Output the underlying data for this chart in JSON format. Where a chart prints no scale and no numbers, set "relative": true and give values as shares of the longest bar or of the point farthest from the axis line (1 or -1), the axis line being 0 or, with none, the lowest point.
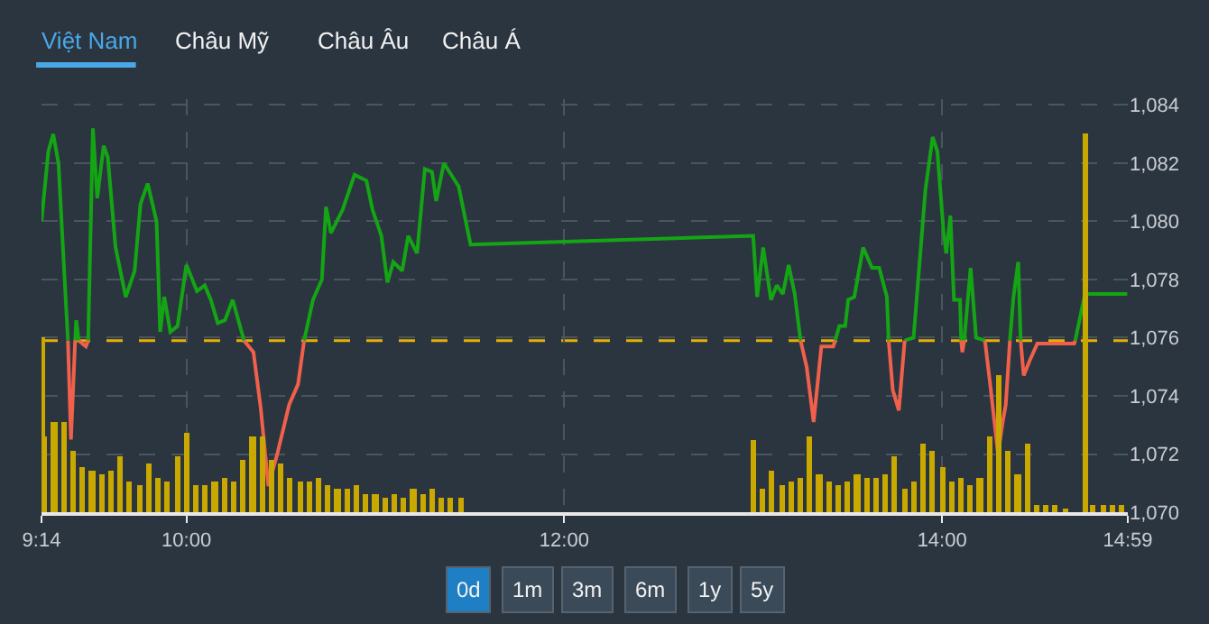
{
  "chart_data": [
    {
      "type": "line",
      "annotations": [
        "Việt Nam",
        "Châu Mỹ",
        "Châu Âu",
        "Châu Á",
        "0d",
        "1m",
        "3m",
        "6m",
        "1y",
        "5y"
      ],
      "x": [
        9.233,
        9.269,
        9.295,
        9.323,
        9.348,
        9.373,
        9.389,
        9.411,
        9.417,
        9.43,
        9.468,
        9.48,
        9.505,
        9.528,
        9.562,
        9.584,
        9.625,
        9.679,
        9.726,
        9.757,
        9.795,
        9.842,
        9.861,
        9.883,
        9.915,
        9.953,
        10.0,
        10.056,
        10.097,
        10.129,
        10.166,
        10.204,
        10.245,
        10.305,
        10.355,
        10.393,
        10.434,
        10.481,
        10.544,
        10.591,
        10.623,
        10.67,
        10.717,
        10.739,
        10.765,
        10.827,
        10.89,
        10.953,
        10.985,
        11.032,
        11.064,
        11.095,
        11.142,
        11.174,
        11.221,
        11.262,
        11.3,
        11.322,
        11.363,
        11.441,
        11.504,
        13.0,
        13.021,
        13.053,
        13.094,
        13.125,
        13.157,
        13.188,
        13.22,
        13.251,
        13.283,
        13.32,
        13.361,
        13.424,
        13.434,
        13.456,
        13.487,
        13.503,
        13.535,
        13.582,
        13.629,
        13.667,
        13.708,
        13.717,
        13.739,
        13.771,
        13.802,
        13.849,
        13.912,
        13.95,
        13.975,
        14.007,
        14.022,
        14.044,
        14.063,
        14.095,
        14.101,
        14.107,
        14.117,
        14.151,
        14.18,
        14.227,
        14.258,
        14.296,
        14.321,
        14.337,
        14.359,
        14.378,
        14.403,
        14.416,
        14.432,
        14.463,
        14.504,
        14.699,
        14.705,
        14.756,
        14.98
      ],
      "series": [
        {
          "color": "#14a514",
          "values": [
            1080.0,
            1082.4,
            1083.0,
            1082.0,
            1078.9,
            1075.9,
            null,
            1075.9,
            1076.6,
            1075.9,
            null,
            1075.9,
            1083.2,
            1080.8,
            1082.6,
            1082.2,
            1079.1,
            1077.4,
            1078.3,
            1080.6,
            1081.3,
            1080.0,
            1076.2,
            1077.4,
            1076.2,
            1076.4,
            1078.5,
            1077.6,
            1077.8,
            1077.3,
            1076.5,
            1076.6,
            1077.3,
            1075.9,
            null,
            null,
            null,
            null,
            null,
            null,
            1075.9,
            1077.3,
            1078.0,
            1080.5,
            1079.6,
            1080.4,
            1081.6,
            1081.4,
            1080.4,
            1079.5,
            1077.9,
            1078.6,
            1078.3,
            1079.5,
            1078.9,
            1081.8,
            1081.7,
            1080.7,
            1082.0,
            1081.2,
            1079.2,
            1079.5,
            1077.4,
            1079.1,
            1077.3,
            1077.8,
            1077.5,
            1078.5,
            1077.5,
            1075.9,
            null,
            null,
            null,
            null,
            1075.9,
            1076.4,
            1076.4,
            1077.3,
            1077.4,
            1079.1,
            1078.4,
            1078.4,
            1077.4,
            1075.9,
            null,
            null,
            1075.9,
            1076.0,
            1081.1,
            1082.9,
            1082.4,
            1079.7,
            1078.9,
            1080.2,
            1077.3,
            1077.3,
            1075.9,
            null,
            1075.9,
            1078.4,
            1076.0,
            1075.9,
            null,
            null,
            null,
            null,
            1075.9,
            1077.4,
            1078.6,
            1075.9,
            null,
            null,
            null,
            null,
            1075.9,
            1077.5,
            1077.5
          ]
        },
        {
          "color": "#f0604a",
          "values": [
            null,
            null,
            null,
            null,
            null,
            1075.9,
            1072.5,
            1075.9,
            null,
            1075.9,
            1075.7,
            1075.9,
            null,
            null,
            null,
            null,
            null,
            null,
            null,
            null,
            null,
            null,
            null,
            null,
            null,
            null,
            null,
            null,
            null,
            null,
            null,
            null,
            null,
            1075.9,
            1075.5,
            1073.6,
            1070.9,
            1072.0,
            1073.7,
            1074.4,
            1075.9,
            null,
            null,
            null,
            null,
            null,
            null,
            null,
            null,
            null,
            null,
            null,
            null,
            null,
            null,
            null,
            null,
            null,
            null,
            null,
            null,
            null,
            null,
            null,
            null,
            null,
            null,
            null,
            null,
            1075.9,
            1075.0,
            1073.1,
            1075.7,
            1075.7,
            1075.9,
            null,
            null,
            null,
            null,
            null,
            null,
            null,
            null,
            1075.9,
            1074.2,
            1073.5,
            1075.9,
            null,
            null,
            null,
            null,
            null,
            null,
            null,
            null,
            null,
            1075.9,
            1075.5,
            1075.9,
            null,
            null,
            1075.9,
            1074.2,
            1072.0,
            1073.1,
            1073.7,
            1075.9,
            null,
            null,
            1075.9,
            1074.7,
            1075.2,
            1075.8,
            1075.8,
            1075.9,
            null,
            null
          ]
        }
      ],
      "xlim": [
        9.233,
        14.983
      ],
      "xticks": [
        {
          "value": 9.233,
          "label": "9:14"
        },
        {
          "value": 10,
          "label": "10:00"
        },
        {
          "value": 12,
          "label": "12:00"
        },
        {
          "value": 14,
          "label": "14:00"
        },
        {
          "value": 14.983,
          "label": "14:59"
        }
      ],
      "ylim": [
        1070,
        1084.2
      ],
      "yticks": [
        {
          "value": 1070,
          "label": "1,070"
        },
        {
          "value": 1072,
          "label": "1,072"
        },
        {
          "value": 1074,
          "label": "1,074"
        },
        {
          "value": 1076,
          "label": "1,076"
        },
        {
          "value": 1078,
          "label": "1,078"
        },
        {
          "value": 1080,
          "label": "1,080"
        },
        {
          "value": 1082,
          "label": "1,082"
        },
        {
          "value": 1084,
          "label": "1,084"
        }
      ],
      "ref_lines": [
        {
          "axis": "y",
          "value": 1075.9,
          "color": "#e6b000",
          "line_style": "dashed"
        }
      ],
      "grid": true,
      "marker": "none",
      "line_style": "solid"
    },
    {
      "type": "bar",
      "relative": true,
      "color": "#c9a800",
      "tick_labels": false,
      "xlim": [
        9.233,
        14.983
      ],
      "x": [
        9.233,
        9.25,
        9.3,
        9.35,
        9.4,
        9.45,
        9.5,
        9.55,
        9.6,
        9.65,
        9.7,
        9.75,
        9.8,
        9.85,
        9.9,
        9.95,
        10.0,
        10.05,
        10.1,
        10.15,
        10.2,
        10.25,
        10.3,
        10.35,
        10.4,
        10.45,
        10.5,
        10.55,
        10.6,
        10.65,
        10.7,
        10.75,
        10.8,
        10.85,
        10.9,
        10.95,
        11.0,
        11.05,
        11.1,
        11.15,
        11.2,
        11.25,
        11.3,
        11.35,
        11.4,
        11.45,
        13.0,
        13.05,
        13.1,
        13.15,
        13.2,
        13.25,
        13.3,
        13.35,
        13.4,
        13.45,
        13.5,
        13.55,
        13.6,
        13.65,
        13.7,
        13.75,
        13.8,
        13.85,
        13.9,
        13.95,
        14.0,
        14.05,
        14.1,
        14.15,
        14.2,
        14.25,
        14.3,
        14.35,
        14.4,
        14.45,
        14.5,
        14.55,
        14.6,
        14.65,
        14.755,
        14.8,
        14.85,
        14.9,
        14.95
      ],
      "values": [
        0.46,
        0.2,
        0.24,
        0.24,
        0.16,
        0.12,
        0.11,
        0.1,
        0.11,
        0.15,
        0.08,
        0.07,
        0.13,
        0.09,
        0.08,
        0.15,
        0.21,
        0.07,
        0.07,
        0.08,
        0.09,
        0.08,
        0.14,
        0.2,
        0.2,
        0.14,
        0.13,
        0.09,
        0.08,
        0.08,
        0.09,
        0.07,
        0.06,
        0.06,
        0.07,
        0.05,
        0.05,
        0.04,
        0.05,
        0.04,
        0.06,
        0.05,
        0.06,
        0.04,
        0.04,
        0.04,
        0.19,
        0.06,
        0.11,
        0.07,
        0.08,
        0.09,
        0.2,
        0.1,
        0.08,
        0.07,
        0.08,
        0.1,
        0.09,
        0.09,
        0.1,
        0.15,
        0.06,
        0.08,
        0.18,
        0.16,
        0.12,
        0.08,
        0.09,
        0.07,
        0.09,
        0.2,
        0.36,
        0.16,
        0.1,
        0.18,
        0.02,
        0.02,
        0.02,
        0.01,
        1.0,
        0.02,
        0.02,
        0.02,
        0.02
      ]
    }
  ]
}
